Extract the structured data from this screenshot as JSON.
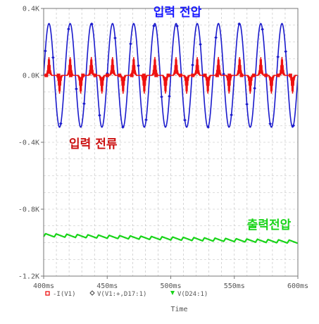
{
  "chart_data": {
    "type": "line",
    "xlabel": "Time",
    "x_unit": "ms",
    "xlim": [
      400,
      600
    ],
    "ylim": [
      -1200,
      400
    ],
    "x_tick_labels": [
      "400ms",
      "450ms",
      "500ms",
      "550ms",
      "600ms"
    ],
    "x_tick_values": [
      400,
      450,
      500,
      550,
      600
    ],
    "y_tick_labels": [
      "0.4K",
      "0.0K",
      "-0.4K",
      "-0.8K",
      "-1.2K"
    ],
    "y_tick_values": [
      400,
      0,
      -400,
      -800,
      -1200
    ],
    "grid": true,
    "legend_position": "bottom-left",
    "annotations": [
      {
        "text": "입력 전압",
        "color": "#1a1aff",
        "series": "V(V1:+,D17:1)"
      },
      {
        "text": "입력 전류",
        "color": "#cc1111",
        "series": "-I(V1)"
      },
      {
        "text": "출력전압",
        "color": "#18d418",
        "series": "V(D24:1)"
      }
    ],
    "series": [
      {
        "name": "-I(V1)",
        "color": "#ee1111",
        "marker": "square",
        "description_values": "Pulsed current drawn at each voltage peak; positive pulses near voltage positive peaks, negative pulses near negative peaks",
        "frequency_hz": 60,
        "peak_value": 110,
        "x": [
          400,
          403,
          404.2,
          405.5,
          406.8,
          408,
          411.3,
          412.5,
          413.8,
          415.1,
          416.3,
          420
        ],
        "y": [
          0,
          0,
          85,
          110,
          60,
          0,
          0,
          -85,
          -110,
          -60,
          0,
          0
        ]
      },
      {
        "name": "V(V1:+,D17:1)",
        "color": "#1a1acc",
        "marker": "diamond",
        "description_values": "Sinusoidal input voltage, amplitude about 310 V, frequency 60 Hz",
        "frequency_hz": 60,
        "amplitude": 310,
        "x": [
          400,
          404.17,
          408.33,
          412.5,
          416.67,
          420.83,
          425,
          429.17,
          433.33
        ],
        "y": [
          0,
          310,
          0,
          -310,
          0,
          310,
          0,
          -310,
          0
        ]
      },
      {
        "name": "V(D24:1)",
        "color": "#18d418",
        "marker": "triangle-down",
        "description_values": "Output voltage about -960 V, sawtooth ripple of about 20 V, slowly drifting downward",
        "x": [
          400,
          450,
          500,
          550,
          600
        ],
        "y": [
          -955,
          -965,
          -975,
          -985,
          -995
        ]
      }
    ]
  }
}
